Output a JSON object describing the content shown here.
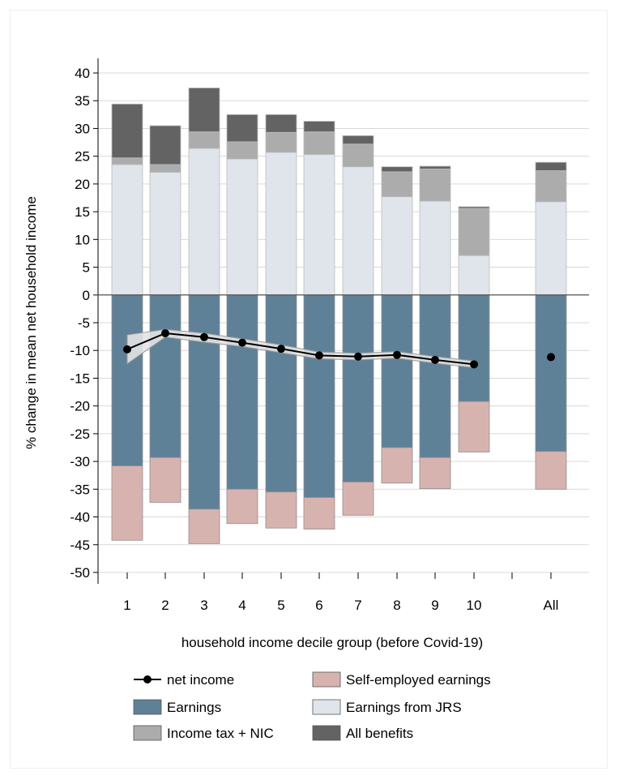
{
  "chart_data": {
    "type": "bar",
    "stacked": true,
    "ylabel": "% change in mean net household income",
    "xlabel": "household income decile group (before Covid-19)",
    "categories": [
      "1",
      "2",
      "3",
      "4",
      "5",
      "6",
      "7",
      "8",
      "9",
      "10",
      "All"
    ],
    "ylim": [
      -50,
      40
    ],
    "yticks": [
      40,
      35,
      30,
      25,
      20,
      15,
      10,
      5,
      0,
      -5,
      -10,
      -15,
      -20,
      -25,
      -30,
      -35,
      -40,
      -45,
      -50
    ],
    "grid": true,
    "series": [
      {
        "key": "earnings",
        "name": "Earnings",
        "color": "#5f8198",
        "values": [
          -30.8,
          -29.3,
          -38.6,
          -35.0,
          -35.5,
          -36.5,
          -33.7,
          -27.5,
          -29.3,
          -19.2,
          -28.2
        ]
      },
      {
        "key": "self_employed",
        "name": "Self-employed earnings",
        "color": "#d7b3af",
        "values": [
          -13.4,
          -8.1,
          -6.2,
          -6.2,
          -6.5,
          -5.7,
          -6.0,
          -6.4,
          -5.6,
          -9.1,
          -6.8
        ]
      },
      {
        "key": "jrs",
        "name": "Earnings from JRS",
        "color": "#dfe5ea",
        "values": [
          23.5,
          22.1,
          26.4,
          24.5,
          25.7,
          25.3,
          23.1,
          17.7,
          16.9,
          7.1,
          16.8
        ]
      },
      {
        "key": "tax_nic",
        "name": "Income tax + NIC",
        "color": "#acacac",
        "values": [
          1.2,
          1.4,
          3.0,
          3.1,
          3.6,
          4.1,
          4.1,
          4.5,
          5.8,
          8.5,
          5.6
        ]
      },
      {
        "key": "benefits",
        "name": "All benefits",
        "color": "#636363",
        "values": [
          9.7,
          7.0,
          7.9,
          4.9,
          3.2,
          1.9,
          1.5,
          0.9,
          0.5,
          0.3,
          1.5
        ]
      }
    ],
    "net_income": {
      "name": "net income",
      "values": [
        -9.8,
        -6.9,
        -7.6,
        -8.6,
        -9.7,
        -10.9,
        -11.1,
        -10.8,
        -11.7,
        -12.5,
        -11.2
      ],
      "ci_low": [
        -12.4,
        -7.6,
        -8.5,
        -9.3,
        -10.4,
        -11.5,
        -11.7,
        -11.4,
        -12.3,
        -13.1,
        null
      ],
      "ci_high": [
        -7.2,
        -6.2,
        -6.9,
        -7.9,
        -9.0,
        -10.3,
        -10.5,
        -10.2,
        -11.1,
        -11.9,
        null
      ]
    },
    "legend_position": "bottom",
    "legend": [
      {
        "label": "net income",
        "kind": "line"
      },
      {
        "label": "Self-employed earnings",
        "kind": "box",
        "color": "#d7b3af"
      },
      {
        "label": "Earnings",
        "kind": "box",
        "color": "#5f8198"
      },
      {
        "label": "Earnings from JRS",
        "kind": "box",
        "color": "#dfe5ea"
      },
      {
        "label": "Income tax + NIC",
        "kind": "box",
        "color": "#acacac"
      },
      {
        "label": "All benefits",
        "kind": "box",
        "color": "#636363"
      }
    ]
  }
}
